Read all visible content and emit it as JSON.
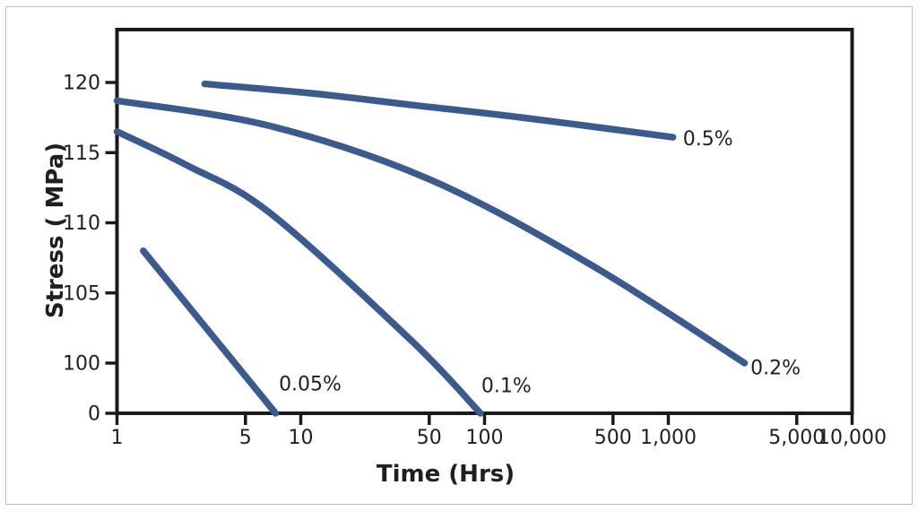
{
  "figure": {
    "background": "#ffffff",
    "frame_border_color": "#bcbcbc"
  },
  "chart_data": {
    "type": "line",
    "title": "",
    "xlabel": "Time (Hrs)",
    "ylabel": "Stress ( MPa)",
    "x_scale": "log",
    "x_range": [
      1,
      10000
    ],
    "y_break": "axis shows 0 then jumps to 100-120 (broken scale)",
    "y_range_upper": [
      100,
      123.8
    ],
    "grid": "off",
    "legend": "inline labels at curve ends",
    "axis_color": "#1a1a1a",
    "text_color": "#1f1f1f",
    "line_color": "#3b5a8d",
    "x_ticks": [
      {
        "value": 1,
        "label": "1"
      },
      {
        "value": 5,
        "label": "5"
      },
      {
        "value": 10,
        "label": "10"
      },
      {
        "value": 50,
        "label": "50"
      },
      {
        "value": 100,
        "label": "100"
      },
      {
        "value": 500,
        "label": "500"
      },
      {
        "value": 1000,
        "label": "1,000"
      },
      {
        "value": 5000,
        "label": "5,000"
      },
      {
        "value": 10000,
        "label": "10,000"
      }
    ],
    "y_ticks": [
      {
        "value": 0,
        "label": "0"
      },
      {
        "value": 100,
        "label": "100"
      },
      {
        "value": 105,
        "label": "105"
      },
      {
        "value": 110,
        "label": "110"
      },
      {
        "value": 115,
        "label": "115"
      },
      {
        "value": 120,
        "label": "120"
      }
    ],
    "series": [
      {
        "name": "strain-0.5-percent",
        "label": "0.5%",
        "label_anchor": {
          "x": 1200,
          "y": 116.0
        },
        "points": [
          [
            3,
            119.9
          ],
          [
            12,
            119.2
          ],
          [
            40,
            118.4
          ],
          [
            160,
            117.5
          ],
          [
            1060,
            116.1
          ]
        ]
      },
      {
        "name": "strain-0.2-percent",
        "label": "0.2%",
        "label_anchor": {
          "x": 2800,
          "y": 91
        },
        "points": [
          [
            1,
            118.7
          ],
          [
            6.8,
            116.9
          ],
          [
            50,
            113.1
          ],
          [
            380,
            107.0
          ],
          [
            2600,
            100.0
          ]
        ]
      },
      {
        "name": "strain-0.1-percent",
        "label": "0.1%",
        "label_anchor": {
          "x": 96,
          "y": 55
        },
        "points": [
          [
            1,
            116.5
          ],
          [
            2.4,
            114.1
          ],
          [
            6.8,
            110.7
          ],
          [
            40,
            101.6
          ],
          [
            95,
            0
          ]
        ]
      },
      {
        "name": "strain-0.05-percent",
        "label": "0.05%",
        "label_anchor": {
          "x": 7.6,
          "y": 59
        },
        "points": [
          [
            1.39,
            108.0
          ],
          [
            7.3,
            0
          ]
        ]
      }
    ]
  }
}
